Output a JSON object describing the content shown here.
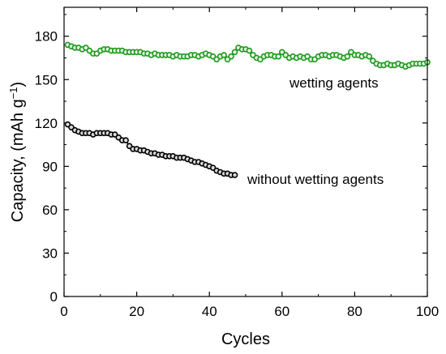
{
  "chart_data": {
    "type": "scatter",
    "xlabel": "Cycles",
    "ylabel_main": "Capacity, (mAh g",
    "ylabel_sup": "−1",
    "ylabel_close": ")",
    "xlim": [
      0,
      100
    ],
    "ylim": [
      0,
      200
    ],
    "xticks": [
      0,
      20,
      40,
      60,
      80,
      100
    ],
    "yticks": [
      0,
      30,
      60,
      90,
      120,
      150,
      180
    ],
    "grid": false,
    "legend": "none",
    "annotations": [
      {
        "text": "wetting agents",
        "series": 0
      },
      {
        "text": "without wetting agents",
        "series": 1
      }
    ],
    "series": [
      {
        "color": "#1a9a1a",
        "fill": "#e8f5e6",
        "marker": "circle",
        "x": [
          1,
          2,
          3,
          4,
          5,
          6,
          7,
          8,
          9,
          10,
          11,
          12,
          13,
          14,
          15,
          16,
          17,
          18,
          19,
          20,
          21,
          22,
          23,
          24,
          25,
          26,
          27,
          28,
          29,
          30,
          31,
          32,
          33,
          34,
          35,
          36,
          37,
          38,
          39,
          40,
          41,
          42,
          43,
          44,
          45,
          46,
          47,
          48,
          49,
          50,
          51,
          52,
          53,
          54,
          55,
          56,
          57,
          58,
          59,
          60,
          61,
          62,
          63,
          64,
          65,
          66,
          67,
          68,
          69,
          70,
          71,
          72,
          73,
          74,
          75,
          76,
          77,
          78,
          79,
          80,
          81,
          82,
          83,
          84,
          85,
          86,
          87,
          88,
          89,
          90,
          91,
          92,
          93,
          94,
          95,
          96,
          97,
          98,
          99,
          100
        ],
        "y": [
          174,
          173,
          172,
          172,
          171,
          172,
          170,
          168,
          168,
          170,
          171,
          171,
          170,
          170,
          170,
          170,
          169,
          169,
          169,
          169,
          169,
          168,
          168,
          167,
          168,
          167,
          167,
          167,
          167,
          166,
          167,
          166,
          166,
          166,
          167,
          167,
          166,
          167,
          168,
          167,
          166,
          164,
          166,
          167,
          164,
          166,
          169,
          172,
          171,
          171,
          170,
          167,
          165,
          164,
          166,
          167,
          167,
          166,
          166,
          169,
          167,
          165,
          166,
          165,
          166,
          165,
          166,
          164,
          164,
          166,
          167,
          167,
          166,
          167,
          167,
          166,
          165,
          166,
          169,
          167,
          167,
          166,
          167,
          166,
          163,
          161,
          160,
          160,
          161,
          160,
          160,
          161,
          160,
          159,
          160,
          161,
          161,
          161,
          161,
          162
        ]
      },
      {
        "color": "#000000",
        "fill": "#d8d8d8",
        "marker": "circle",
        "x": [
          1,
          2,
          3,
          4,
          5,
          6,
          7,
          8,
          9,
          10,
          11,
          12,
          13,
          14,
          15,
          16,
          17,
          18,
          19,
          20,
          21,
          22,
          23,
          24,
          25,
          26,
          27,
          28,
          29,
          30,
          31,
          32,
          33,
          34,
          35,
          36,
          37,
          38,
          39,
          40,
          41,
          42,
          43,
          44,
          45,
          46,
          47
        ],
        "y": [
          119,
          117,
          115,
          114,
          113,
          113,
          113,
          112,
          113,
          113,
          113,
          113,
          112,
          112,
          110,
          108,
          108,
          104,
          102,
          102,
          101,
          101,
          100,
          99,
          99,
          98,
          98,
          97,
          97,
          97,
          96,
          96,
          96,
          95,
          94,
          93,
          93,
          92,
          91,
          90,
          89,
          87,
          86,
          85,
          85,
          84,
          84
        ]
      }
    ]
  }
}
